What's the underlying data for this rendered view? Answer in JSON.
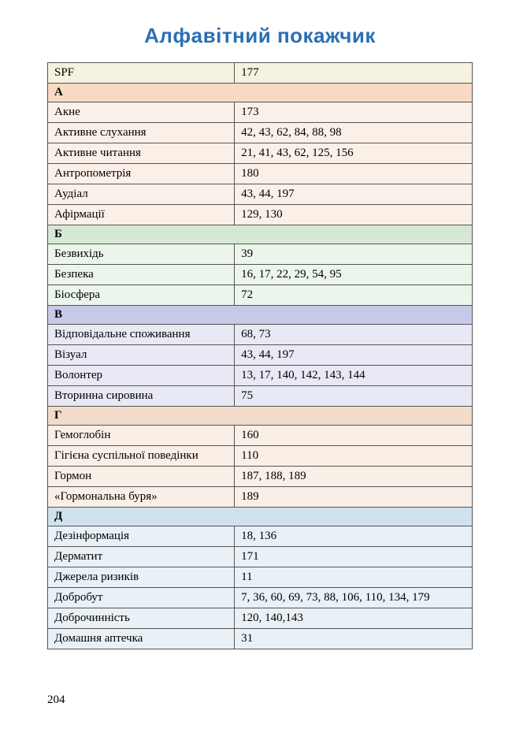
{
  "title": "Алфавітний покажчик",
  "page_number": "204",
  "colors": {
    "title": "#2a6fb5",
    "border": "#555555",
    "first_row": "#f5f3e0",
    "sections": {
      "А": "#f7d9c4",
      "Б": "#d5e8d5",
      "В": "#c7c9e8",
      "Г": "#f2dbc9",
      "Д": "#cfe2ee"
    },
    "row_bg": {
      "first": "#f5f3e0",
      "А": "#fbf0e8",
      "Б": "#ecf5ec",
      "В": "#e8e9f5",
      "Г": "#f9efe7",
      "Д": "#e9f1f7"
    }
  },
  "first_entry": {
    "term": "SPF",
    "pages": "177"
  },
  "sections": [
    {
      "letter": "А",
      "entries": [
        {
          "term": "Акне",
          "pages": "173"
        },
        {
          "term": "Активне слухання",
          "pages": "42, 43, 62, 84, 88, 98"
        },
        {
          "term": "Активне читання",
          "pages": "21, 41, 43, 62, 125, 156"
        },
        {
          "term": "Антропометрія",
          "pages": "180"
        },
        {
          "term": "Аудіал",
          "pages": "43, 44, 197"
        },
        {
          "term": "Афірмації",
          "pages": "129, 130"
        }
      ]
    },
    {
      "letter": "Б",
      "entries": [
        {
          "term": "Безвихідь",
          "pages": "39"
        },
        {
          "term": "Безпека",
          "pages": "16, 17, 22, 29, 54, 95"
        },
        {
          "term": "Біосфера",
          "pages": "72"
        }
      ]
    },
    {
      "letter": "В",
      "entries": [
        {
          "term": "Відповідальне споживання",
          "pages": "68, 73"
        },
        {
          "term": "Візуал",
          "pages": "43, 44, 197"
        },
        {
          "term": "Волонтер",
          "pages": "13, 17, 140, 142, 143, 144"
        },
        {
          "term": "Вторинна сировина",
          "pages": "75"
        }
      ]
    },
    {
      "letter": "Г",
      "entries": [
        {
          "term": "Гемоглобін",
          "pages": "160"
        },
        {
          "term": "Гігієна суспільної поведінки",
          "pages": "110"
        },
        {
          "term": "Гормон",
          "pages": "187, 188, 189"
        },
        {
          "term": "«Гормональна буря»",
          "pages": "189"
        }
      ]
    },
    {
      "letter": "Д",
      "entries": [
        {
          "term": "Дезінформація",
          "pages": "18, 136"
        },
        {
          "term": "Дерматит",
          "pages": "171"
        },
        {
          "term": "Джерела ризиків",
          "pages": "11"
        },
        {
          "term": "Добробут",
          "pages": "7, 36, 60, 69, 73, 88, 106, 110, 134, 179"
        },
        {
          "term": "Доброчинність",
          "pages": "120, 140,143"
        },
        {
          "term": "Домашня аптечка",
          "pages": "31"
        }
      ]
    }
  ]
}
